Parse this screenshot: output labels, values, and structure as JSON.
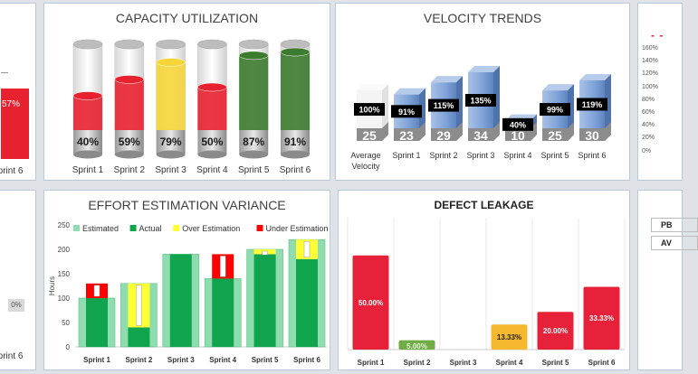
{
  "colors": {
    "red": "#e8212f",
    "yellow": "#f5d538",
    "green": "#3d7b2f",
    "blue": "#6f95d0",
    "grey_cap": "#8c8c8c",
    "est": "#8fdcae",
    "act": "#11a44f",
    "over": "#ffff33",
    "under": "#ff0000",
    "leak_red": "#e8213a",
    "leak_green": "#70ad47",
    "leak_yellow": "#f5b82e"
  },
  "left_top": {
    "value": "57%",
    "xlabel": "Sprint 6"
  },
  "left_bottom": {
    "value": "0%",
    "xlabel": "Sprint 6"
  },
  "right_top": {
    "dash": "- -",
    "ticks": [
      "160%",
      "140%",
      "120%",
      "100%",
      "80%",
      "60%",
      "40%",
      "20%",
      "0%"
    ]
  },
  "right_bottom": {
    "boxes": [
      "PB",
      "AV"
    ]
  },
  "chart_data": [
    {
      "type": "bar",
      "title": "CAPACITY UTILIZATION",
      "categories": [
        "Sprint 1",
        "Sprint 2",
        "Sprint 3",
        "Sprint 4",
        "Sprint 5",
        "Sprint 6"
      ],
      "values": [
        40,
        59,
        79,
        50,
        87,
        91
      ],
      "labels": [
        "40%",
        "59%",
        "79%",
        "50%",
        "87%",
        "91%"
      ],
      "fill_colors": [
        "red",
        "red",
        "yellow",
        "red",
        "green",
        "green"
      ],
      "ylim": [
        0,
        100
      ]
    },
    {
      "type": "bar",
      "title": "VELOCITY TRENDS",
      "categories": [
        "Average Velocity",
        "Sprint 1",
        "Sprint 2",
        "Sprint 3",
        "Sprint 4",
        "Sprint 5",
        "Sprint 6"
      ],
      "values": [
        25,
        23,
        29,
        34,
        10,
        25,
        30
      ],
      "percent_labels": [
        "100%",
        "91%",
        "115%",
        "135%",
        "40%",
        "99%",
        "119%"
      ]
    },
    {
      "type": "bar",
      "title": "EFFORT ESTIMATION VARIANCE",
      "categories": [
        "Sprint 1",
        "Sprint 2",
        "Sprint 3",
        "Sprint 4",
        "Sprint 5",
        "Sprint 6"
      ],
      "ylabel": "Hours",
      "ylim": [
        0,
        250
      ],
      "yticks": [
        "0",
        "50",
        "100",
        "150",
        "200",
        "250"
      ],
      "legend": [
        "Estimated",
        "Actual",
        "Over Estimation",
        "Under Estimation"
      ],
      "series": [
        {
          "name": "Estimated",
          "values": [
            100,
            130,
            190,
            140,
            200,
            220
          ]
        },
        {
          "name": "Actual",
          "values": [
            130,
            40,
            190,
            190,
            190,
            180
          ]
        }
      ]
    },
    {
      "type": "bar",
      "title": "DEFECT LEAKAGE",
      "categories": [
        "Sprint 1",
        "Sprint 2",
        "Sprint 3",
        "Sprint 4",
        "Sprint 5",
        "Sprint 6"
      ],
      "values": [
        50.0,
        5.0,
        0.0,
        13.33,
        20.0,
        33.33
      ],
      "labels": [
        "50.00%",
        "5.00%",
        "",
        "13.33%",
        "20.00%",
        "33.33%"
      ],
      "fill_colors": [
        "leak_red",
        "leak_green",
        "leak_red",
        "leak_yellow",
        "leak_red",
        "leak_red"
      ],
      "ylim": [
        0,
        70
      ]
    }
  ]
}
